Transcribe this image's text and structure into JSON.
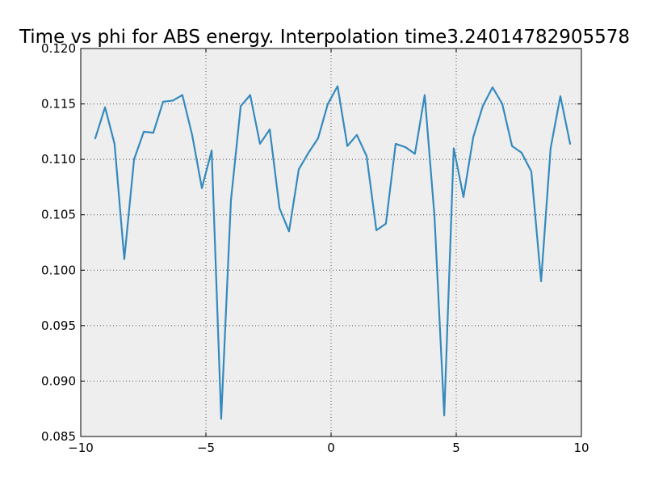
{
  "chart_data": {
    "type": "line",
    "title": "Time vs phi for ABS energy. Interpolation time3.24014782905578",
    "xlabel": "",
    "ylabel": "",
    "xlim": [
      -10,
      10
    ],
    "ylim": [
      0.085,
      0.12
    ],
    "grid": true,
    "x_ticks": [
      -10,
      -5,
      0,
      5,
      10
    ],
    "x_tick_labels": [
      "−10",
      "−5",
      "0",
      "5",
      "10"
    ],
    "y_ticks": [
      0.085,
      0.09,
      0.095,
      0.1,
      0.105,
      0.11,
      0.115,
      0.12
    ],
    "y_tick_labels": [
      "0.085",
      "0.090",
      "0.095",
      "0.100",
      "0.105",
      "0.110",
      "0.115",
      "0.120"
    ],
    "colors": {
      "line": "#348abd",
      "plot_background": "#eeeeee",
      "grid": "#555555"
    },
    "series": [
      {
        "x": [
          -9.42,
          -9.03,
          -8.65,
          -8.26,
          -7.87,
          -7.48,
          -7.1,
          -6.71,
          -6.32,
          -5.94,
          -5.55,
          -5.16,
          -4.77,
          -4.39,
          -4.0,
          -3.61,
          -3.23,
          -2.84,
          -2.45,
          -2.06,
          -1.68,
          -1.29,
          -0.9,
          -0.52,
          -0.13,
          0.26,
          0.65,
          1.03,
          1.42,
          1.81,
          2.19,
          2.58,
          2.97,
          3.35,
          3.74,
          4.13,
          4.52,
          4.9,
          5.29,
          5.68,
          6.06,
          6.45,
          6.84,
          7.23,
          7.61,
          8.0,
          8.39,
          8.77,
          9.16,
          9.55
        ],
        "y": [
          0.1119,
          0.1147,
          0.1114,
          0.101,
          0.11,
          0.1125,
          0.1124,
          0.1152,
          0.1153,
          0.1158,
          0.1122,
          0.1074,
          0.1108,
          0.0866,
          0.1063,
          0.1148,
          0.1158,
          0.1114,
          0.1127,
          0.1056,
          0.1035,
          0.1091,
          0.1106,
          0.1119,
          0.115,
          0.1166,
          0.1112,
          0.1122,
          0.1103,
          0.1036,
          0.1042,
          0.1114,
          0.1111,
          0.1105,
          0.1158,
          0.1049,
          0.0869,
          0.111,
          0.1066,
          0.112,
          0.1148,
          0.1165,
          0.115,
          0.1112,
          0.1106,
          0.1089,
          0.099,
          0.111,
          0.1157,
          0.1114
        ]
      }
    ]
  }
}
